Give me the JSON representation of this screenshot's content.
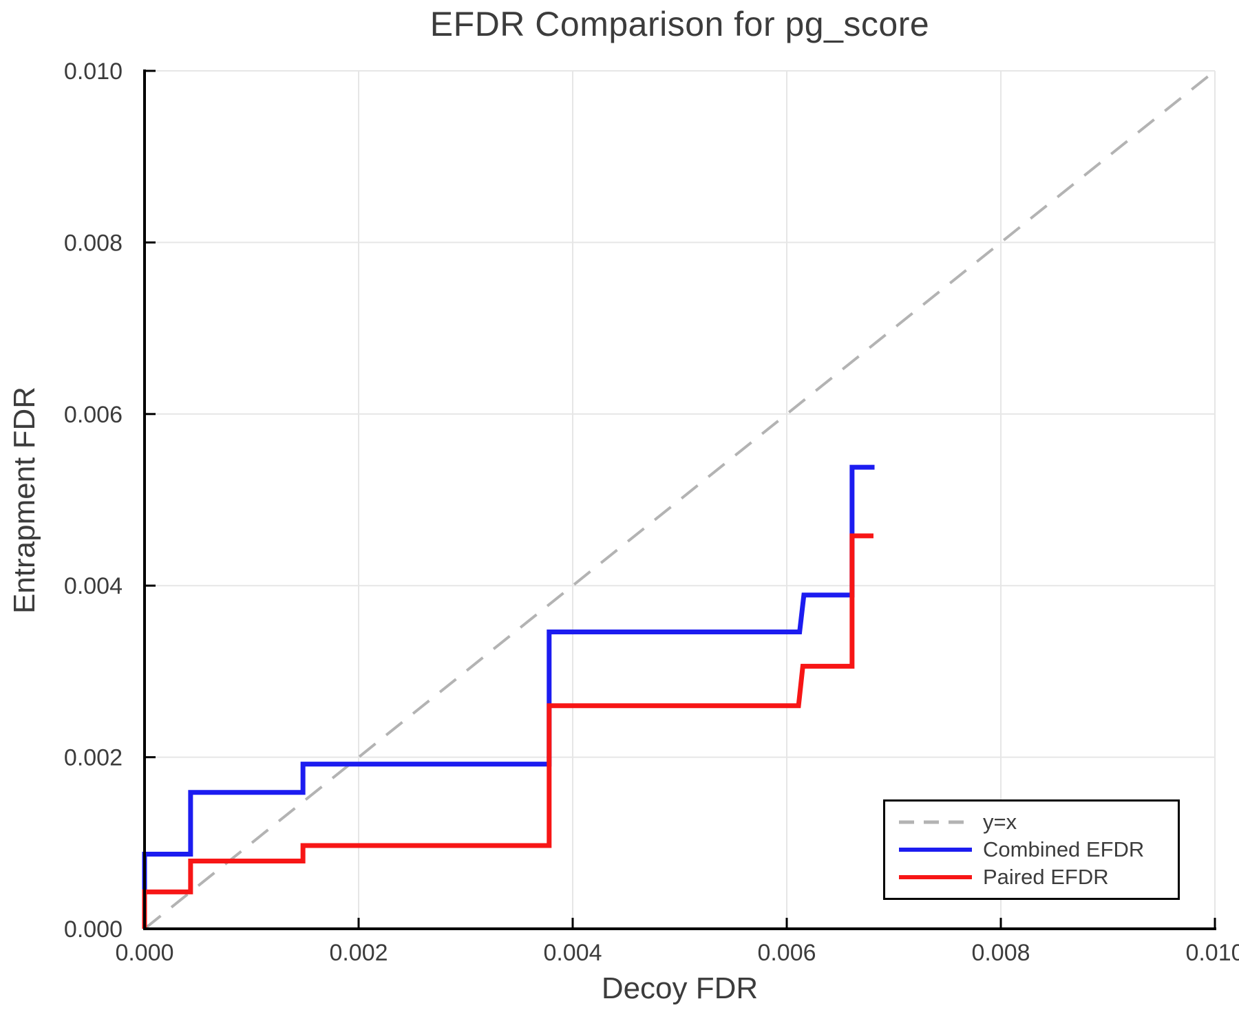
{
  "chart_data": {
    "type": "line",
    "title": "EFDR Comparison for pg_score",
    "xlabel": "Decoy FDR",
    "ylabel": "Entrapment FDR",
    "xlim": [
      0.0,
      0.01
    ],
    "ylim": [
      0.0,
      0.01
    ],
    "x_ticks": [
      0.0,
      0.002,
      0.004,
      0.006,
      0.008,
      0.01
    ],
    "x_tick_labels": [
      "0.000",
      "0.002",
      "0.004",
      "0.006",
      "0.008",
      "0.010"
    ],
    "y_ticks": [
      0.0,
      0.002,
      0.004,
      0.006,
      0.008,
      0.01
    ],
    "y_tick_labels": [
      "0.000",
      "0.002",
      "0.004",
      "0.006",
      "0.008",
      "0.010"
    ],
    "grid": true,
    "colors": {
      "grid": "#e6e6e6",
      "spine": "#000000",
      "tick_mark": "#000000",
      "tick_text": "#3c3c3c",
      "title_text": "#3c3c3c",
      "reference": "#b3b3b3",
      "combined": "#1c1cf0",
      "paired": "#f71616"
    },
    "reference_line": {
      "label": "y=x",
      "style": "dashed",
      "color": "#b3b3b3",
      "points": [
        [
          0.0,
          0.0
        ],
        [
          0.01,
          0.01
        ]
      ]
    },
    "series": [
      {
        "name": "Combined EFDR",
        "color": "#1c1cf0",
        "points": [
          [
            0.0,
            0.0
          ],
          [
            0.0,
            0.00087
          ],
          [
            0.00043,
            0.00087
          ],
          [
            0.00043,
            0.00159
          ],
          [
            0.00148,
            0.00159
          ],
          [
            0.00148,
            0.00192
          ],
          [
            0.00378,
            0.00192
          ],
          [
            0.00378,
            0.00346
          ],
          [
            0.00612,
            0.00346
          ],
          [
            0.00616,
            0.00389
          ],
          [
            0.00661,
            0.00389
          ],
          [
            0.00661,
            0.00538
          ],
          [
            0.00682,
            0.00538
          ]
        ]
      },
      {
        "name": "Paired EFDR",
        "color": "#f71616",
        "points": [
          [
            0.0,
            0.0
          ],
          [
            0.0,
            0.00043
          ],
          [
            0.00043,
            0.00043
          ],
          [
            0.00043,
            0.00079
          ],
          [
            0.00148,
            0.00079
          ],
          [
            0.00148,
            0.00097
          ],
          [
            0.00378,
            0.00097
          ],
          [
            0.00378,
            0.0026
          ],
          [
            0.00611,
            0.0026
          ],
          [
            0.00615,
            0.00306
          ],
          [
            0.00661,
            0.00306
          ],
          [
            0.00661,
            0.00458
          ],
          [
            0.00681,
            0.00458
          ]
        ]
      }
    ],
    "legend": {
      "position": "lower right",
      "entries": [
        {
          "label": "y=x",
          "color": "#b3b3b3",
          "dashed": true
        },
        {
          "label": "Combined EFDR",
          "color": "#1c1cf0",
          "dashed": false
        },
        {
          "label": "Paired EFDR",
          "color": "#f71616",
          "dashed": false
        }
      ]
    }
  }
}
